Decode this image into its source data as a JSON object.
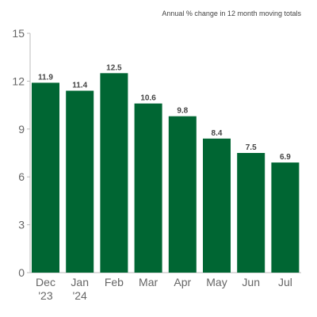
{
  "chart_data": {
    "type": "bar",
    "subtitle": "Annual % change in 12 month moving totals",
    "categories": [
      [
        "Dec",
        "'23"
      ],
      [
        "Jan",
        "'24"
      ],
      [
        "Feb"
      ],
      [
        "Mar"
      ],
      [
        "Apr"
      ],
      [
        "May"
      ],
      [
        "Jun"
      ],
      [
        "Jul"
      ]
    ],
    "values": [
      11.9,
      11.4,
      12.5,
      10.6,
      9.8,
      8.4,
      7.5,
      6.9
    ],
    "data_labels": [
      "11.9",
      "11.4",
      "12.5",
      "10.6",
      "9.8",
      "8.4",
      "7.5",
      "6.9"
    ],
    "ylim": [
      0,
      15
    ],
    "yticks": [
      0,
      3,
      6,
      9,
      12,
      15
    ],
    "ytick_labels": [
      "0",
      "3",
      "6",
      "9",
      "12",
      "15"
    ],
    "bar_color": "#006633",
    "axis_color": "#bbbbbb",
    "grid": false,
    "legend": "none"
  }
}
